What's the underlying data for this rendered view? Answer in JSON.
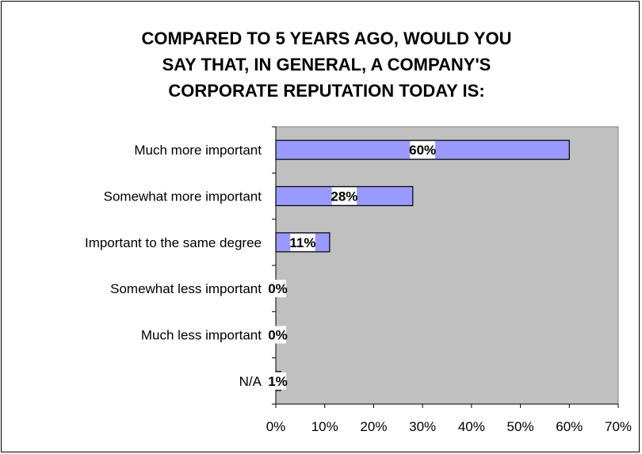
{
  "chart_data": {
    "type": "bar",
    "orientation": "horizontal",
    "title": "COMPARED TO 5 YEARS AGO, WOULD YOU\nSAY THAT, IN GENERAL, A COMPANY'S\nCORPORATE REPUTATION TODAY IS:",
    "categories": [
      "Much more important",
      "Somewhat more important",
      "Important to the same degree",
      "Somewhat less important",
      "Much less important",
      "N/A"
    ],
    "values": [
      60,
      28,
      11,
      0,
      0,
      1
    ],
    "data_labels": [
      "60%",
      "28%",
      "11%",
      "0%",
      "0%",
      "1%"
    ],
    "xlim": [
      0,
      70
    ],
    "x_ticks": [
      0,
      10,
      20,
      30,
      40,
      50,
      60,
      70
    ],
    "x_tick_labels": [
      "0%",
      "10%",
      "20%",
      "30%",
      "40%",
      "50%",
      "60%",
      "70%"
    ],
    "grid": false,
    "legend": "none",
    "colors": {
      "bar_fill": "#9999ff",
      "plot_background": "#c0c0c0",
      "bar_stroke": "#000000",
      "label_background": "#ffffff"
    }
  }
}
